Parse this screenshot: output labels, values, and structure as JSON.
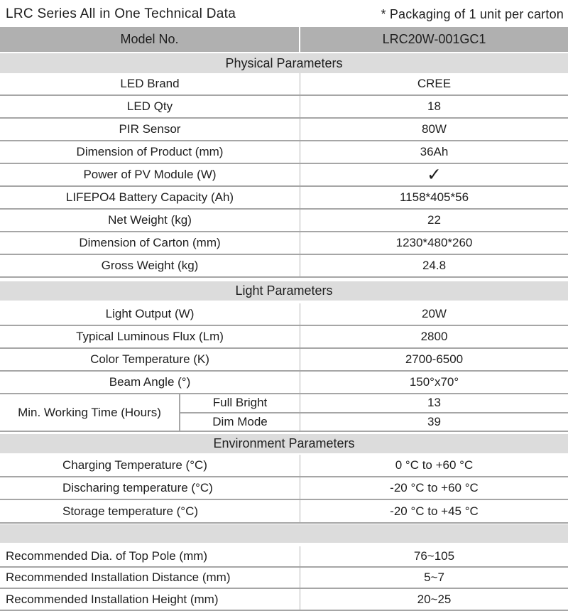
{
  "header": {
    "title": "LRC Series All in One Technical Data",
    "note": "* Packaging of 1 unit per carton"
  },
  "model_row": {
    "label": "Model No.",
    "value": "LRC20W-001GC1"
  },
  "sections": {
    "physical": {
      "heading": "Physical Parameters",
      "rows": [
        {
          "label": "LED Brand",
          "value": "CREE"
        },
        {
          "label": "LED Qty",
          "value": "18"
        },
        {
          "label": "PIR Sensor",
          "value": "80W"
        },
        {
          "label": "Dimension of Product (mm)",
          "value": "36Ah"
        },
        {
          "label": "Power of PV Module (W)",
          "value": "✓"
        },
        {
          "label": "LIFEPO4 Battery Capacity (Ah)",
          "value": "1158*405*56"
        },
        {
          "label": "Net Weight (kg)",
          "value": "22"
        },
        {
          "label": "Dimension of Carton (mm)",
          "value": "1230*480*260"
        },
        {
          "label": "Gross Weight (kg)",
          "value": "24.8"
        }
      ]
    },
    "light": {
      "heading": "Light Parameters",
      "rows": [
        {
          "label": "Light Output (W)",
          "value": "20W"
        },
        {
          "label": "Typical Luminous Flux (Lm)",
          "value": "2800"
        },
        {
          "label": "Color Temperature (K)",
          "value": "2700-6500"
        },
        {
          "label": "Beam Angle (°)",
          "value": "150°x70°"
        }
      ],
      "working_time": {
        "label": "Min. Working Time (Hours)",
        "full_bright": {
          "label": "Full Bright",
          "value": "13"
        },
        "dim_mode": {
          "label": "Dim Mode",
          "value": "39"
        }
      }
    },
    "environment": {
      "heading": "Environment Parameters",
      "rows": [
        {
          "label": "Charging Temperature (°C)",
          "value": "0 °C to +60 °C"
        },
        {
          "label": "Discharing temperature (°C)",
          "value": "-20 °C to +60 °C"
        },
        {
          "label": "Storage temperature (°C)",
          "value": "-20 °C to +45 °C"
        }
      ]
    },
    "installation": {
      "rows": [
        {
          "label": "Recommended Dia. of Top Pole (mm)",
          "value": "76~105"
        },
        {
          "label": "Recommended Installation Distance (mm)",
          "value": "5~7"
        },
        {
          "label": "Recommended Installation Height (mm)",
          "value": "20~25"
        }
      ]
    }
  },
  "colors": {
    "header_row_bg": "#b0b0b0",
    "section_band_bg": "#dcdcdc",
    "grid_line": "#a6a6a6"
  }
}
